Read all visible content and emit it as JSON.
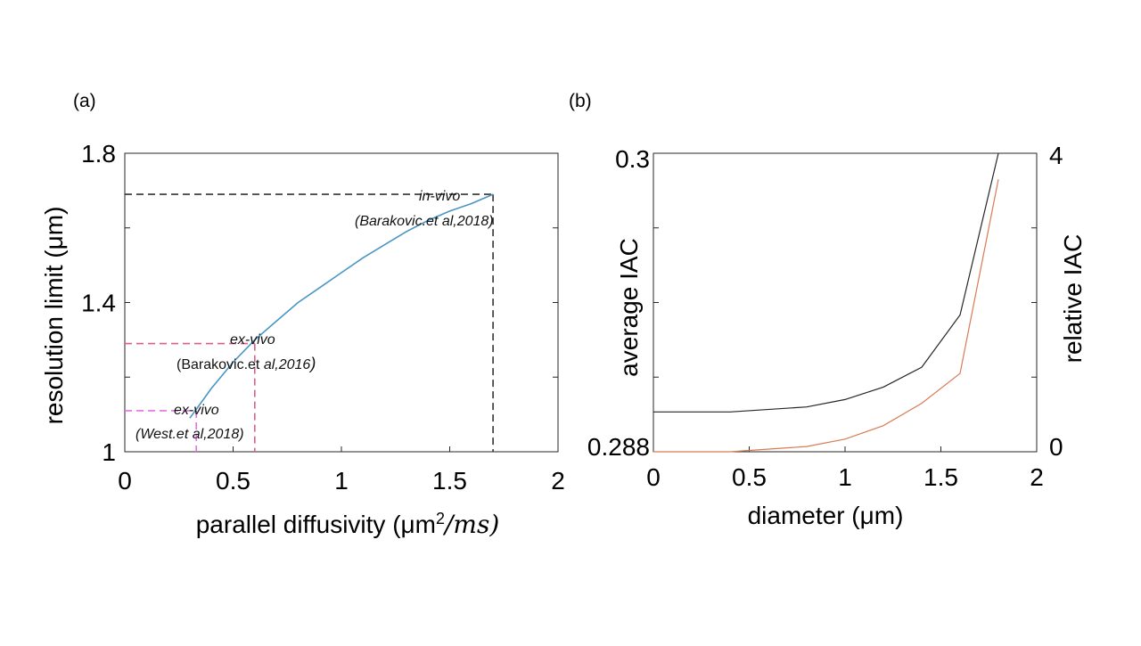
{
  "colors": {
    "curve_a": "#4a95c4",
    "invivo_guide": "#333333",
    "exvivo2016_guide": "#d95f8a",
    "exvivo2018_guide": "#e66fe6",
    "average_iac": "#262626",
    "relative_iac": "#d97a55"
  },
  "chart_data": [
    {
      "id": "a",
      "panel_label": "(a)",
      "type": "line",
      "xlabel_prefix": "parallel diffusivity (μm",
      "xlabel_sup": "2",
      "xlabel_suffix": "/ms)",
      "ylabel": "resolution limit (μm)",
      "xlim": [
        0,
        2
      ],
      "ylim": [
        1,
        1.8
      ],
      "xticks": [
        0,
        0.5,
        1,
        1.5,
        2
      ],
      "xtick_labels": [
        "0",
        "0.5",
        "1",
        "1.5",
        "2"
      ],
      "yticks": [
        1,
        1.4,
        1.8
      ],
      "ytick_labels": [
        "1",
        "1.4",
        "1.8"
      ],
      "series": [
        {
          "name": "resolution limit",
          "x": [
            0.3,
            0.35,
            0.4,
            0.5,
            0.6,
            0.7,
            0.8,
            0.9,
            1.0,
            1.1,
            1.2,
            1.3,
            1.4,
            1.5,
            1.6,
            1.7
          ],
          "y": [
            1.09,
            1.13,
            1.17,
            1.24,
            1.3,
            1.35,
            1.4,
            1.44,
            1.48,
            1.52,
            1.555,
            1.59,
            1.62,
            1.645,
            1.665,
            1.69
          ]
        }
      ],
      "guides": [
        {
          "name": "in-vivo",
          "x": 1.7,
          "y": 1.69
        },
        {
          "name": "ex-vivo-2016",
          "x": 0.6,
          "y": 1.29
        },
        {
          "name": "ex-vivo-2018",
          "x": 0.33,
          "y": 1.11
        }
      ],
      "annotations": {
        "invivo_line1": "in-vivo",
        "invivo_line2": "(Barakovic.et al,2018)",
        "exvivo2016_line1": "ex-vivo",
        "exvivo2016_line2_normal": "(Barakovic.et ",
        "exvivo2016_line2_italic": "al,2016",
        "exvivo2016_line2_close": ")",
        "exvivo2018_line1": "ex-vivo",
        "exvivo2018_line2": "(West.et al,2018)"
      }
    },
    {
      "id": "b",
      "panel_label": "(b)",
      "type": "line",
      "xlabel": "diameter (μm)",
      "ylabel_left": "average IAC",
      "ylabel_right": "relative  IAC",
      "xlim": [
        0,
        2
      ],
      "ylim_left": [
        0.288,
        0.3
      ],
      "ylim_right": [
        0,
        4
      ],
      "xticks": [
        0,
        0.5,
        1,
        1.5,
        2
      ],
      "xtick_labels": [
        "0",
        "0.5",
        "1",
        "1.5",
        "2"
      ],
      "yticks_left_labels": [
        "0.288",
        "0.3"
      ],
      "yticks_right_labels": [
        "0",
        "4"
      ],
      "series": [
        {
          "name": "average IAC",
          "axis": "left",
          "x": [
            0,
            0.4,
            0.8,
            1.0,
            1.2,
            1.4,
            1.6,
            1.8
          ],
          "y": [
            0.2896,
            0.2896,
            0.2898,
            0.2901,
            0.2906,
            0.2914,
            0.2935,
            0.3
          ]
        },
        {
          "name": "relative IAC",
          "axis": "right",
          "x": [
            0,
            0.4,
            0.8,
            1.0,
            1.2,
            1.4,
            1.6,
            1.8
          ],
          "y": [
            0,
            0.0,
            0.07,
            0.17,
            0.35,
            0.65,
            1.05,
            3.65
          ]
        }
      ]
    }
  ]
}
